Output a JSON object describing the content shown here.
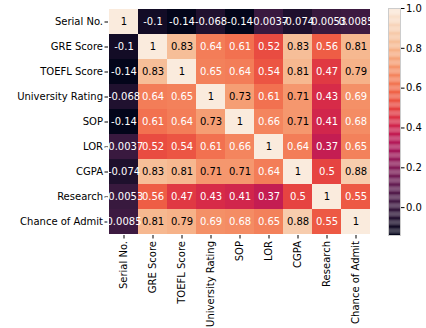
{
  "chart_data": {
    "type": "heatmap",
    "categories": [
      "Serial No.",
      "GRE Score",
      "TOEFL Score",
      "University Rating",
      "SOP",
      "LOR",
      "CGPA",
      "Research",
      "Chance of Admit"
    ],
    "cells": [
      [
        1,
        -0.1,
        -0.14,
        -0.068,
        -0.14,
        -0.0037,
        -0.074,
        -0.0053,
        0.0085
      ],
      [
        -0.1,
        1,
        0.83,
        0.64,
        0.61,
        0.52,
        0.83,
        0.56,
        0.81
      ],
      [
        -0.14,
        0.83,
        1,
        0.65,
        0.64,
        0.54,
        0.81,
        0.47,
        0.79
      ],
      [
        -0.068,
        0.64,
        0.65,
        1,
        0.73,
        0.61,
        0.71,
        0.43,
        0.69
      ],
      [
        -0.14,
        0.61,
        0.64,
        0.73,
        1,
        0.66,
        0.71,
        0.41,
        0.68
      ],
      [
        -0.0037,
        0.52,
        0.54,
        0.61,
        0.66,
        1,
        0.64,
        0.37,
        0.65
      ],
      [
        -0.074,
        0.83,
        0.81,
        0.71,
        0.71,
        0.64,
        1,
        0.5,
        0.88
      ],
      [
        -0.0053,
        0.56,
        0.47,
        0.43,
        0.41,
        0.37,
        0.5,
        1,
        0.55
      ],
      [
        0.0085,
        0.81,
        0.79,
        0.69,
        0.68,
        0.65,
        0.88,
        0.55,
        1
      ]
    ],
    "data_labels": true,
    "colorbar": {
      "lim": [
        -0.14,
        1
      ],
      "ticks": [
        {
          "value": 0,
          "label": "0.0"
        },
        {
          "value": 0.2,
          "label": "0.2"
        },
        {
          "value": 0.4,
          "label": "0.4"
        },
        {
          "value": 0.6,
          "label": "0.6"
        },
        {
          "value": 0.8,
          "label": "0.8"
        },
        {
          "value": 1,
          "label": "1.0"
        }
      ]
    }
  }
}
